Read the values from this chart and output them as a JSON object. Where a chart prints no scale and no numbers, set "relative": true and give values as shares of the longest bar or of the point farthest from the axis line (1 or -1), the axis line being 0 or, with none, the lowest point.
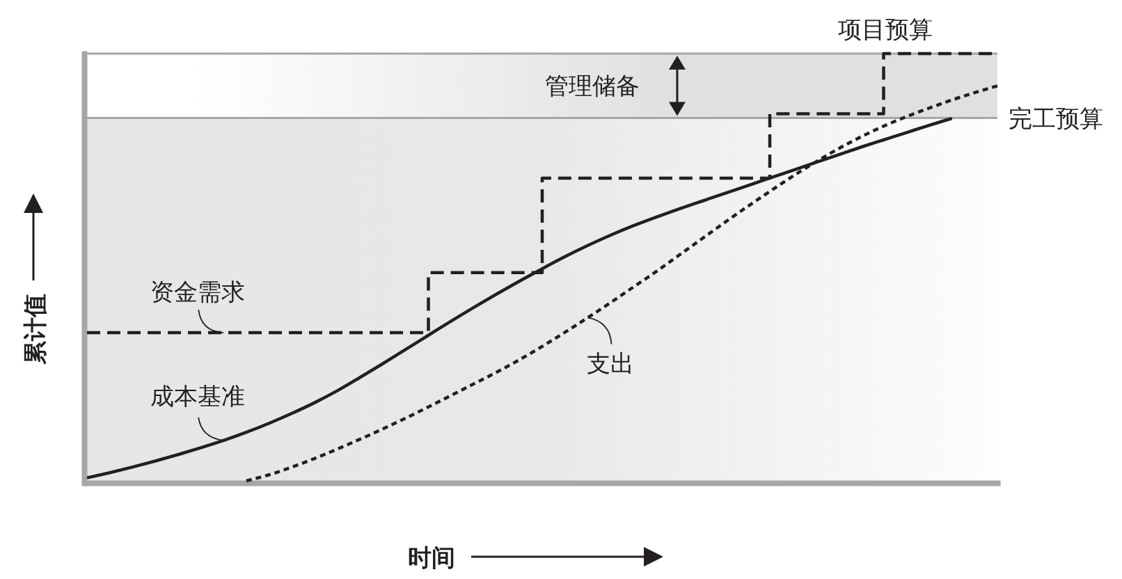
{
  "chart_data": {
    "type": "line",
    "relative": true,
    "xlabel": "时间",
    "ylabel": "累计值",
    "categories": [
      null,
      null,
      null,
      null,
      null,
      null,
      null,
      null,
      null,
      null,
      null,
      null,
      null,
      null,
      null,
      null,
      null,
      null,
      null,
      null,
      null,
      null,
      null,
      null,
      null,
      null,
      null,
      null,
      null,
      null,
      null,
      null,
      null,
      null,
      null,
      null,
      null,
      null,
      null,
      null,
      null
    ],
    "series": [
      {
        "name": "成本基准",
        "color": "#231f20",
        "line_style": "solid",
        "values": [
          0.012,
          0.024,
          0.037,
          0.051,
          0.066,
          0.082,
          0.099,
          0.118,
          0.139,
          0.162,
          0.187,
          0.215,
          0.246,
          0.278,
          0.311,
          0.344,
          0.377,
          0.409,
          0.44,
          0.47,
          0.499,
          0.527,
          0.553,
          0.577,
          0.599,
          0.619,
          0.638,
          0.656,
          0.674,
          0.692,
          0.71,
          0.728,
          0.746,
          0.764,
          0.782,
          0.799,
          0.816,
          0.833,
          0.849,
          null,
          null
        ]
      },
      {
        "name": "支出",
        "color": "#231f20",
        "line_style": "dotted",
        "values": [
          null,
          null,
          null,
          null,
          null,
          null,
          null,
          0.005,
          0.019,
          0.037,
          0.057,
          0.079,
          0.102,
          0.126,
          0.151,
          0.177,
          0.204,
          0.231,
          0.258,
          0.287,
          0.318,
          0.351,
          0.385,
          0.42,
          0.456,
          0.492,
          0.53,
          0.568,
          0.606,
          0.643,
          0.679,
          0.714,
          0.747,
          0.778,
          0.806,
          0.831,
          0.853,
          0.873,
          0.892,
          0.909,
          0.925
        ]
      },
      {
        "name": "资金需求",
        "type": "step",
        "color": "#231f20",
        "line_style": "dashed",
        "values": [
          0.35,
          0.35,
          0.35,
          0.35,
          0.35,
          0.35,
          0.35,
          0.35,
          0.35,
          0.35,
          0.35,
          0.35,
          0.35,
          0.35,
          0.35,
          0.49,
          0.49,
          0.49,
          0.49,
          0.49,
          0.71,
          0.71,
          0.71,
          0.71,
          0.71,
          0.71,
          0.71,
          0.71,
          0.71,
          0.71,
          0.86,
          0.86,
          0.86,
          0.86,
          0.86,
          1,
          1,
          1,
          1,
          1,
          1
        ]
      }
    ],
    "ref_lines": [
      {
        "axis": "y",
        "value": 0.85,
        "label": "完工预算",
        "color": "#a6a6a6"
      },
      {
        "axis": "y",
        "value": 1,
        "label": "项目预算",
        "color": "#a6a6a6"
      }
    ],
    "bands": [
      {
        "axis": "y",
        "from": 0.85,
        "to": 1,
        "label": "管理储备",
        "color": "#e0e0e0"
      }
    ]
  }
}
